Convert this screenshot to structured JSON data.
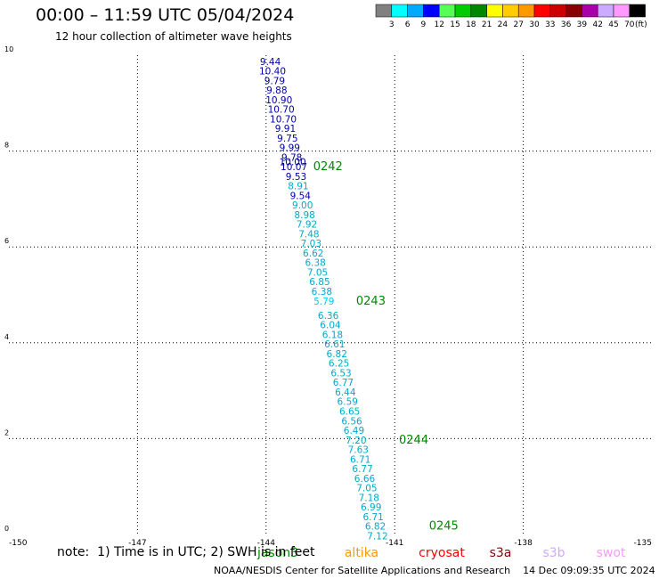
{
  "header": {
    "title": "00:00 – 11:59 UTC 05/04/2024",
    "subtitle": "12 hour collection of altimeter wave heights"
  },
  "legend": {
    "colors": [
      "#808080",
      "#00ffff",
      "#00aaff",
      "#0000ff",
      "#55ff55",
      "#00cc00",
      "#008800",
      "#ffff00",
      "#ffcc00",
      "#ff9900",
      "#ff0000",
      "#cc0000",
      "#880000",
      "#aa00aa",
      "#ccaaff",
      "#ff99ff",
      "#000000"
    ],
    "labels": [
      "3",
      "6",
      "9",
      "12",
      "15",
      "18",
      "21",
      "24",
      "27",
      "30",
      "33",
      "36",
      "39",
      "42",
      "45",
      "70",
      "(ft)"
    ]
  },
  "chart_data": {
    "type": "scatter",
    "xlim": [
      -150,
      -135
    ],
    "ylim": [
      0,
      10
    ],
    "x_ticks": [
      "-150",
      "-147",
      "-144",
      "-141",
      "-138",
      "-135"
    ],
    "x_tick_values": [
      -150,
      -147,
      -144,
      -141,
      -138,
      -135
    ],
    "y_ticks": [
      "0",
      "2",
      "4",
      "6",
      "8",
      "10"
    ],
    "y_tick_values": [
      0,
      2,
      4,
      6,
      8,
      10
    ],
    "grid": true,
    "points": [
      {
        "x": -143.9,
        "y": 9.8,
        "value": "9.44",
        "color": "#0000aa"
      },
      {
        "x": -143.85,
        "y": 9.6,
        "value": "10.40",
        "color": "#0000aa"
      },
      {
        "x": -143.8,
        "y": 9.4,
        "value": "9.79",
        "color": "#0000aa"
      },
      {
        "x": -143.75,
        "y": 9.2,
        "value": "9.88",
        "color": "#0000aa"
      },
      {
        "x": -143.7,
        "y": 9.0,
        "value": "10.90",
        "color": "#0000aa"
      },
      {
        "x": -143.65,
        "y": 8.8,
        "value": "10.70",
        "color": "#0000aa"
      },
      {
        "x": -143.6,
        "y": 8.6,
        "value": "10.70",
        "color": "#0000aa"
      },
      {
        "x": -143.55,
        "y": 8.4,
        "value": "9.91",
        "color": "#0000aa"
      },
      {
        "x": -143.5,
        "y": 8.2,
        "value": "9.75",
        "color": "#0000aa"
      },
      {
        "x": -143.45,
        "y": 8.0,
        "value": "9.99",
        "color": "#0000aa"
      },
      {
        "x": -143.4,
        "y": 7.8,
        "value": "9.78",
        "color": "#0000aa"
      },
      {
        "x": -143.38,
        "y": 7.7,
        "value": "10.00",
        "color": "#0000aa"
      },
      {
        "x": -143.35,
        "y": 7.6,
        "value": "10.07",
        "color": "#0000aa"
      },
      {
        "x": -143.3,
        "y": 7.4,
        "value": "9.53",
        "color": "#0000aa"
      },
      {
        "x": -143.25,
        "y": 7.2,
        "value": "8.91",
        "color": "#00aacc"
      },
      {
        "x": -143.2,
        "y": 7.0,
        "value": "9.54",
        "color": "#0000aa"
      },
      {
        "x": -143.15,
        "y": 6.8,
        "value": "9.00",
        "color": "#00aacc"
      },
      {
        "x": -143.1,
        "y": 6.6,
        "value": "8.98",
        "color": "#00aacc"
      },
      {
        "x": -143.05,
        "y": 6.4,
        "value": "7.92",
        "color": "#00aacc"
      },
      {
        "x": -143.0,
        "y": 6.2,
        "value": "7.48",
        "color": "#00aacc"
      },
      {
        "x": -142.95,
        "y": 6.0,
        "value": "7.03",
        "color": "#00aacc"
      },
      {
        "x": -142.9,
        "y": 5.8,
        "value": "6.62",
        "color": "#00aacc"
      },
      {
        "x": -142.85,
        "y": 5.6,
        "value": "6.38",
        "color": "#00aacc"
      },
      {
        "x": -142.8,
        "y": 5.4,
        "value": "7.05",
        "color": "#00aacc"
      },
      {
        "x": -142.75,
        "y": 5.2,
        "value": "6.85",
        "color": "#00aacc"
      },
      {
        "x": -142.7,
        "y": 5.0,
        "value": "6.38",
        "color": "#00aacc"
      },
      {
        "x": -142.65,
        "y": 4.8,
        "value": "5.79",
        "color": "#00ccee"
      },
      {
        "x": -142.55,
        "y": 4.5,
        "value": "6.36",
        "color": "#00aacc"
      },
      {
        "x": -142.5,
        "y": 4.3,
        "value": "6.04",
        "color": "#00aacc"
      },
      {
        "x": -142.45,
        "y": 4.1,
        "value": "6.18",
        "color": "#00aacc"
      },
      {
        "x": -142.4,
        "y": 3.9,
        "value": "6.61",
        "color": "#00aacc"
      },
      {
        "x": -142.35,
        "y": 3.7,
        "value": "6.82",
        "color": "#00aacc"
      },
      {
        "x": -142.3,
        "y": 3.5,
        "value": "6.25",
        "color": "#00aacc"
      },
      {
        "x": -142.25,
        "y": 3.3,
        "value": "6.53",
        "color": "#00aacc"
      },
      {
        "x": -142.2,
        "y": 3.1,
        "value": "6.77",
        "color": "#00aacc"
      },
      {
        "x": -142.15,
        "y": 2.9,
        "value": "6.44",
        "color": "#00aacc"
      },
      {
        "x": -142.1,
        "y": 2.7,
        "value": "6.59",
        "color": "#00aacc"
      },
      {
        "x": -142.05,
        "y": 2.5,
        "value": "6.65",
        "color": "#00aacc"
      },
      {
        "x": -142.0,
        "y": 2.3,
        "value": "6.56",
        "color": "#00aacc"
      },
      {
        "x": -141.95,
        "y": 2.1,
        "value": "6.49",
        "color": "#00aacc"
      },
      {
        "x": -141.9,
        "y": 1.9,
        "value": "7.20",
        "color": "#00aacc"
      },
      {
        "x": -141.85,
        "y": 1.7,
        "value": "7.63",
        "color": "#00aacc"
      },
      {
        "x": -141.8,
        "y": 1.5,
        "value": "6.71",
        "color": "#00aacc"
      },
      {
        "x": -141.75,
        "y": 1.3,
        "value": "6.77",
        "color": "#00aacc"
      },
      {
        "x": -141.7,
        "y": 1.1,
        "value": "6.66",
        "color": "#00aacc"
      },
      {
        "x": -141.65,
        "y": 0.9,
        "value": "7.05",
        "color": "#00aacc"
      },
      {
        "x": -141.6,
        "y": 0.7,
        "value": "7.18",
        "color": "#00aacc"
      },
      {
        "x": -141.55,
        "y": 0.5,
        "value": "6.99",
        "color": "#00aacc"
      },
      {
        "x": -141.5,
        "y": 0.3,
        "value": "6.71",
        "color": "#00aacc"
      },
      {
        "x": -141.45,
        "y": 0.1,
        "value": "6.82",
        "color": "#00aacc"
      },
      {
        "x": -141.4,
        "y": -0.1,
        "value": "7.12",
        "color": "#00aacc"
      }
    ],
    "time_labels": [
      {
        "x": -142.9,
        "y": 7.6,
        "text": "0242"
      },
      {
        "x": -141.9,
        "y": 4.8,
        "text": "0243"
      },
      {
        "x": -140.9,
        "y": 1.9,
        "text": "0244"
      },
      {
        "x": -140.2,
        "y": 0.1,
        "text": "0245"
      }
    ],
    "time_label_color": "#008800"
  },
  "satellites": [
    {
      "name": "jason3",
      "color": "#008800"
    },
    {
      "name": "altika",
      "color": "#ff9900"
    },
    {
      "name": "cryosat",
      "color": "#ff0000"
    },
    {
      "name": "s3a",
      "color": "#880000"
    },
    {
      "name": "s3b",
      "color": "#ccaaff"
    },
    {
      "name": "swot",
      "color": "#ff99ff"
    }
  ],
  "footer": {
    "note": "note:  1) Time is in UTC; 2) SWH is in feet",
    "credit": "NOAA/NESDIS Center for Satellite Applications and Research    14 Dec 09:09:35 UTC 2024"
  }
}
